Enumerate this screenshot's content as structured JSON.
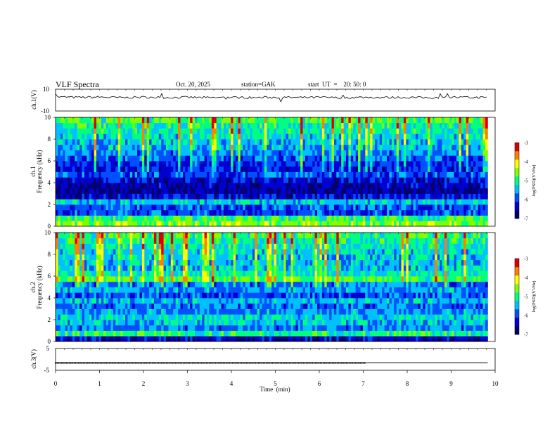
{
  "header": {
    "title": "VLF  Spectra",
    "date": "Oct. 20, 2025",
    "station": "station=GAK",
    "start": "start  UT  =    20: 50: 0"
  },
  "chart_data": [
    {
      "type": "line",
      "panel": "ch1-waveform",
      "ylabel": "ch.1(V)",
      "ylim": [
        -10,
        10
      ],
      "yticks": [
        "10",
        "-10"
      ],
      "xlim": [
        0,
        10
      ],
      "x": [
        0,
        0.5,
        1,
        1.5,
        2,
        2.5,
        3,
        3.5,
        4,
        4.5,
        5,
        5.5,
        6,
        6.5,
        7,
        7.5,
        8,
        8.5,
        9,
        9.5,
        9.83
      ],
      "values": [
        3,
        2.5,
        2.8,
        2.3,
        2.7,
        2.4,
        2.6,
        2.2,
        2.5,
        2.3,
        2.6,
        2.4,
        2.5,
        2.2,
        2.6,
        2.4,
        2.5,
        2.3,
        2.6,
        2.4,
        2.5
      ],
      "color": "#000000"
    },
    {
      "type": "heatmap",
      "panel": "ch1-spectrogram",
      "ylabel": "ch.1\nFrequency  (kHz)",
      "yticks": [
        "0",
        "2",
        "4",
        "6",
        "8",
        "10"
      ],
      "ylim": [
        0,
        10
      ],
      "xlim": [
        0,
        10
      ],
      "colorbar": {
        "label": "log(PSD)(V²/Hz)",
        "ticks": [
          "-3",
          "-4",
          "-5",
          "-6",
          "-7"
        ],
        "range": [
          -7,
          -3
        ]
      },
      "rows_khz": [
        0.25,
        0.75,
        1.25,
        1.75,
        2.25,
        2.75,
        3.25,
        3.75,
        4.25,
        4.75,
        5.25,
        5.75,
        6.25,
        6.75,
        7.25,
        7.75,
        8.25,
        8.75,
        9.25,
        9.75
      ],
      "level_by_row": [
        -4.6,
        -4.9,
        -6.0,
        -5.9,
        -5.4,
        -6.3,
        -6.6,
        -6.5,
        -6.3,
        -5.9,
        -6.2,
        -6.1,
        -5.9,
        -5.7,
        -5.5,
        -5.4,
        -5.3,
        -5.2,
        -5.1,
        -4.8
      ]
    },
    {
      "type": "heatmap",
      "panel": "ch2-spectrogram",
      "ylabel": "ch.2\nFrequency  (kHz)",
      "yticks": [
        "0",
        "2",
        "4",
        "6",
        "8",
        "10"
      ],
      "ylim": [
        0,
        10
      ],
      "xlim": [
        0,
        10
      ],
      "colorbar": {
        "label": "log(PSD)(V²/Hz)",
        "ticks": [
          "-3",
          "-4",
          "-5",
          "-6",
          "-7"
        ],
        "range": [
          -7,
          -3
        ]
      },
      "rows_khz": [
        0.25,
        0.75,
        1.25,
        1.75,
        2.25,
        2.75,
        3.25,
        3.75,
        4.25,
        4.75,
        5.25,
        5.75,
        6.25,
        6.75,
        7.25,
        7.75,
        8.25,
        8.75,
        9.25,
        9.75
      ],
      "level_by_row": [
        -6.4,
        -5.0,
        -5.7,
        -5.4,
        -5.3,
        -5.6,
        -5.8,
        -5.5,
        -5.9,
        -5.6,
        -5.8,
        -4.8,
        -5.2,
        -5.4,
        -5.5,
        -5.4,
        -5.3,
        -5.2,
        -5.1,
        -4.9
      ]
    },
    {
      "type": "line",
      "panel": "ch3-waveform",
      "ylabel": "ch.3(V)",
      "ylim": [
        -5,
        5
      ],
      "yticks": [
        "5",
        "-5"
      ],
      "xlim": [
        0,
        10
      ],
      "x": [
        0,
        7.05,
        7.05,
        9.83
      ],
      "values": [
        -1.6,
        -1.6,
        -1.6,
        -1.6
      ],
      "color": "#000000"
    }
  ],
  "xaxis": {
    "label": "Time  (min)",
    "ticks": [
      "0",
      "1",
      "2",
      "3",
      "4",
      "5",
      "6",
      "7",
      "8",
      "9",
      "10"
    ],
    "range": [
      0,
      10
    ]
  },
  "colors": {
    "cmap": [
      "#000070",
      "#0000d0",
      "#0050ff",
      "#00c0ff",
      "#00ff80",
      "#80ff00",
      "#ffff00",
      "#ff8000",
      "#e00000",
      "#ffffff"
    ]
  }
}
